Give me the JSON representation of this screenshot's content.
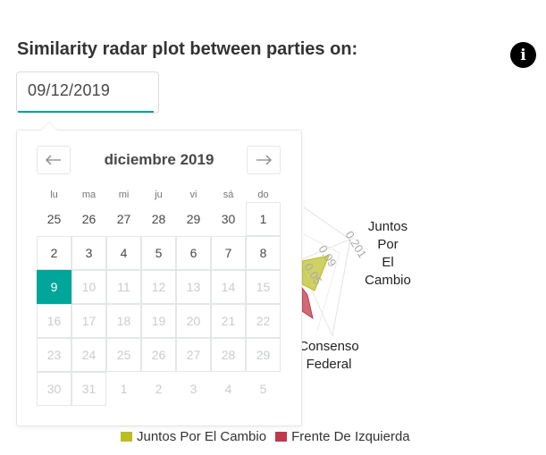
{
  "header": {
    "title": "Similarity radar plot between parties on:"
  },
  "date_input": {
    "value": "09/12/2019"
  },
  "calendar": {
    "month_label": "diciembre 2019",
    "weekdays": [
      "lu",
      "ma",
      "mi",
      "ju",
      "vi",
      "sá",
      "do"
    ],
    "weeks": [
      [
        {
          "d": "25",
          "s": "out"
        },
        {
          "d": "26",
          "s": "out"
        },
        {
          "d": "27",
          "s": "out"
        },
        {
          "d": "28",
          "s": "out"
        },
        {
          "d": "29",
          "s": "out"
        },
        {
          "d": "30",
          "s": "out"
        },
        {
          "d": "1",
          "s": "in"
        }
      ],
      [
        {
          "d": "2",
          "s": "in"
        },
        {
          "d": "3",
          "s": "in"
        },
        {
          "d": "4",
          "s": "in"
        },
        {
          "d": "5",
          "s": "in"
        },
        {
          "d": "6",
          "s": "in"
        },
        {
          "d": "7",
          "s": "in"
        },
        {
          "d": "8",
          "s": "in"
        }
      ],
      [
        {
          "d": "9",
          "s": "sel"
        },
        {
          "d": "10",
          "s": "dis"
        },
        {
          "d": "11",
          "s": "dis"
        },
        {
          "d": "12",
          "s": "dis"
        },
        {
          "d": "13",
          "s": "dis"
        },
        {
          "d": "14",
          "s": "dis"
        },
        {
          "d": "15",
          "s": "dis"
        }
      ],
      [
        {
          "d": "16",
          "s": "dis"
        },
        {
          "d": "17",
          "s": "dis"
        },
        {
          "d": "18",
          "s": "dis"
        },
        {
          "d": "19",
          "s": "dis"
        },
        {
          "d": "20",
          "s": "dis"
        },
        {
          "d": "21",
          "s": "dis"
        },
        {
          "d": "22",
          "s": "dis"
        }
      ],
      [
        {
          "d": "23",
          "s": "dis"
        },
        {
          "d": "24",
          "s": "dis"
        },
        {
          "d": "25",
          "s": "dis"
        },
        {
          "d": "26",
          "s": "dis"
        },
        {
          "d": "27",
          "s": "dis"
        },
        {
          "d": "28",
          "s": "dis"
        },
        {
          "d": "29",
          "s": "dis"
        }
      ],
      [
        {
          "d": "30",
          "s": "dis"
        },
        {
          "d": "31",
          "s": "dis"
        },
        {
          "d": "1",
          "s": "outdis"
        },
        {
          "d": "2",
          "s": "outdis"
        },
        {
          "d": "3",
          "s": "outdis"
        },
        {
          "d": "4",
          "s": "outdis"
        },
        {
          "d": "5",
          "s": "outdis"
        }
      ]
    ],
    "icons": {
      "prev": "arrow-left-icon",
      "next": "arrow-right-icon"
    }
  },
  "chart_data": {
    "type": "radar",
    "axes": [
      {
        "label_lines": [
          "Juntos",
          "Por",
          "El",
          "Cambio"
        ],
        "tick_labels": [
          "0.201",
          "0.09",
          "0.05"
        ]
      },
      {
        "label_lines": [
          "Consenso",
          "Federal"
        ]
      }
    ],
    "series": [
      {
        "name": "Juntos Por El Cambio",
        "color": "#bcbd22"
      },
      {
        "name": "Frente De Izquierda",
        "color": "#c0394b"
      }
    ],
    "legend_position": "bottom"
  },
  "info_button": {
    "icon": "info-icon",
    "glyph": "i"
  },
  "colors": {
    "accent": "#00a699",
    "border": "#e4e7e7"
  }
}
